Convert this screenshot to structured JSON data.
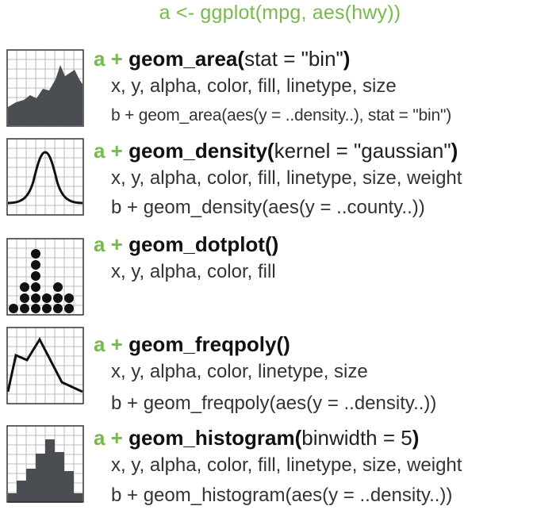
{
  "title": "a <- ggplot(mpg, aes(hwy))",
  "entries": [
    {
      "prefix": "a + ",
      "func": "geom_area(",
      "arg": "stat = \"bin\"",
      "close": ")",
      "aes": "x, y, alpha, color, fill, linetype, size",
      "example": "b + geom_area(aes(y = ..density..), stat = \"bin\")"
    },
    {
      "prefix": "a + ",
      "func": "geom_density(",
      "arg": "kernel = \"gaussian\"",
      "close": ")",
      "aes": "x, y, alpha, color, fill, linetype, size, weight",
      "example": "b + geom_density(aes(y = ..county..))"
    },
    {
      "prefix": "a + ",
      "func": "geom_dotplot(",
      "arg": "",
      "close": ")",
      "aes": "x, y, alpha, color, fill",
      "example": ""
    },
    {
      "prefix": "a + ",
      "func": "geom_freqpoly(",
      "arg": "",
      "close": ")",
      "aes": "x, y, alpha, color, linetype, size",
      "example": "b + geom_freqpoly(aes(y = ..density..))"
    },
    {
      "prefix": "a + ",
      "func": "geom_histogram(",
      "arg": "binwidth = 5",
      "close": ")",
      "aes": "x, y, alpha, color, fill, linetype, size, weight",
      "example": "b + geom_histogram(aes(y = ..density..))"
    }
  ],
  "colors": {
    "accent": "#77b94b",
    "fill": "#4a4d52",
    "grid": "#aaaaaa"
  },
  "icons": [
    "area-plot-icon",
    "density-plot-icon",
    "dotplot-icon",
    "freqpoly-icon",
    "histogram-icon"
  ]
}
